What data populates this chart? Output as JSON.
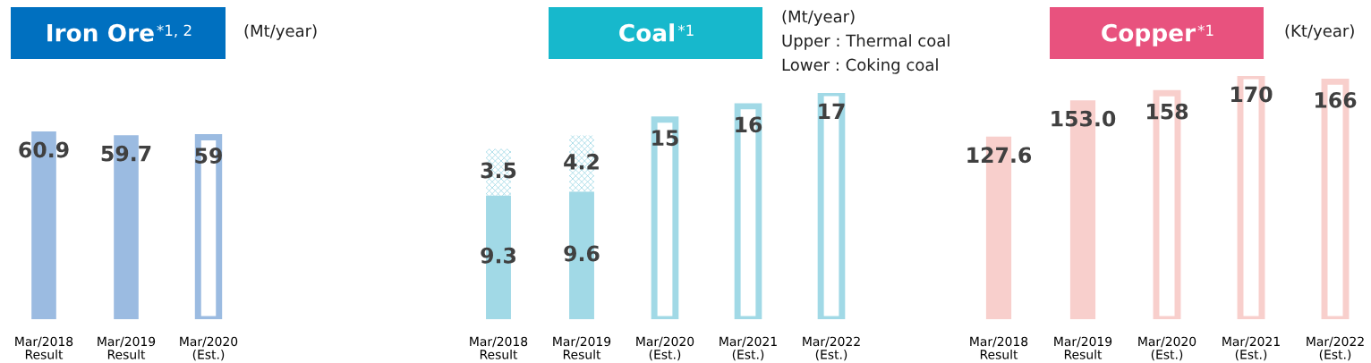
{
  "chart_data": [
    {
      "type": "bar",
      "title": "Iron Ore$^{*1, 2}$",
      "annotations": [
        "(Mt/year)"
      ],
      "categories": [
        "Mar/2018\nResult",
        "Mar/2019\nResult",
        "Mar/2020\n(Est.)"
      ],
      "data_labels": true,
      "series": [
        {
          "color": "#9bbbe1",
          "values": [
            60.9,
            59.7,
            null
          ]
        },
        {
          "color": "#9bbbe1",
          "values": [
            null,
            null,
            59
          ]
        }
      ]
    },
    {
      "type": "bar",
      "title": "Coal$^{*1}$",
      "annotations": [
        "(Mt/year)",
        "Upper : Thermal coal",
        "Lower : Coking coal"
      ],
      "categories": [
        "Mar/2018\nResult",
        "Mar/2019\nResult",
        "Mar/2020\n(Est.)",
        "Mar/2021\n(Est.)",
        "Mar/2022\n(Est.)"
      ],
      "stacked": true,
      "data_labels": true,
      "series": [
        {
          "color": "#a1d9e6",
          "values": [
            9.3,
            9.6,
            null,
            null,
            null
          ]
        },
        {
          "color": "#a1d9e6",
          "values": [
            3.5,
            4.2,
            null,
            null,
            null
          ]
        },
        {
          "color": "#a1d9e6",
          "values": [
            null,
            null,
            15,
            16,
            17
          ]
        }
      ]
    },
    {
      "type": "bar",
      "title": "Copper$^{*1}$",
      "annotations": [
        "(Kt/year)"
      ],
      "categories": [
        "Mar/2018\nResult",
        "Mar/2019\nResult",
        "Mar/2020\n(Est.)",
        "Mar/2021\n(Est.)",
        "Mar/2022\n(Est.)"
      ],
      "data_labels": true,
      "series": [
        {
          "color": "#f8cfcc",
          "values": [
            127.6,
            153.0,
            null,
            null,
            null
          ],
          "value_labels": [
            "127.6",
            "153.0",
            null,
            null,
            null
          ]
        },
        {
          "color": "#f8cfcc",
          "values": [
            null,
            null,
            158,
            170,
            166
          ]
        }
      ]
    }
  ]
}
